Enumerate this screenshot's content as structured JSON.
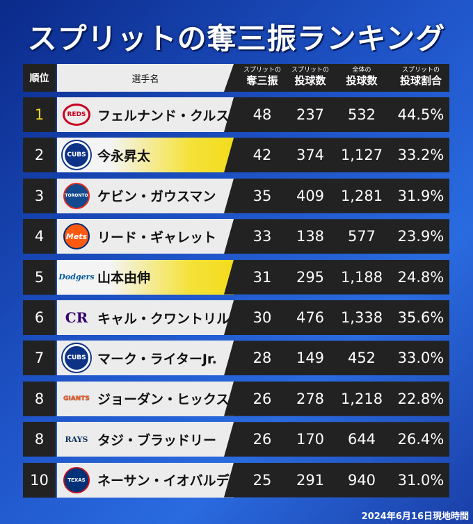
{
  "title": "スプリットの奪三振ランキング",
  "header": {
    "rank": "順位",
    "name": "選手名",
    "columns": [
      {
        "small": "スプリットの",
        "large": "奪三振"
      },
      {
        "small": "スプリットの",
        "large": "投球数"
      },
      {
        "small": "全体の",
        "large": "投球数"
      },
      {
        "small": "スプリットの",
        "large": "投球割合"
      }
    ]
  },
  "rows": [
    {
      "rank": "1",
      "logo": "REDS",
      "name": "フェルナンド・クルス",
      "cells": [
        "48",
        "237",
        "532",
        "44.5%"
      ],
      "highlight": false
    },
    {
      "rank": "2",
      "logo": "CUBS",
      "name": "今永昇太",
      "cells": [
        "42",
        "374",
        "1,127",
        "33.2%"
      ],
      "highlight": true
    },
    {
      "rank": "3",
      "logo": "TORONTO",
      "name": "ケビン・ガウスマン",
      "cells": [
        "35",
        "409",
        "1,281",
        "31.9%"
      ],
      "highlight": false
    },
    {
      "rank": "4",
      "logo": "Mets",
      "name": "リード・ギャレット",
      "cells": [
        "33",
        "138",
        "577",
        "23.9%"
      ],
      "highlight": false
    },
    {
      "rank": "5",
      "logo": "Dodgers",
      "name": "山本由伸",
      "cells": [
        "31",
        "295",
        "1,188",
        "24.8%"
      ],
      "highlight": true
    },
    {
      "rank": "6",
      "logo": "CR",
      "name": "キャル・クワントリル",
      "cells": [
        "30",
        "476",
        "1,338",
        "35.6%"
      ],
      "highlight": false
    },
    {
      "rank": "7",
      "logo": "CUBS",
      "name": "マーク・ライターJr.",
      "cells": [
        "28",
        "149",
        "452",
        "33.0%"
      ],
      "highlight": false
    },
    {
      "rank": "8",
      "logo": "GIANTS",
      "name": "ジョーダン・ヒックス",
      "cells": [
        "26",
        "278",
        "1,218",
        "22.8%"
      ],
      "highlight": false
    },
    {
      "rank": "8",
      "logo": "RAYS",
      "name": "タジ・ブラッドリー",
      "cells": [
        "26",
        "170",
        "644",
        "26.4%"
      ],
      "highlight": false
    },
    {
      "rank": "10",
      "logo": "TEXAS",
      "name": "ネーサン・イオバルディ",
      "cells": [
        "25",
        "291",
        "940",
        "31.0%"
      ],
      "highlight": false
    }
  ],
  "footer": "2024年6月16日現地時間"
}
